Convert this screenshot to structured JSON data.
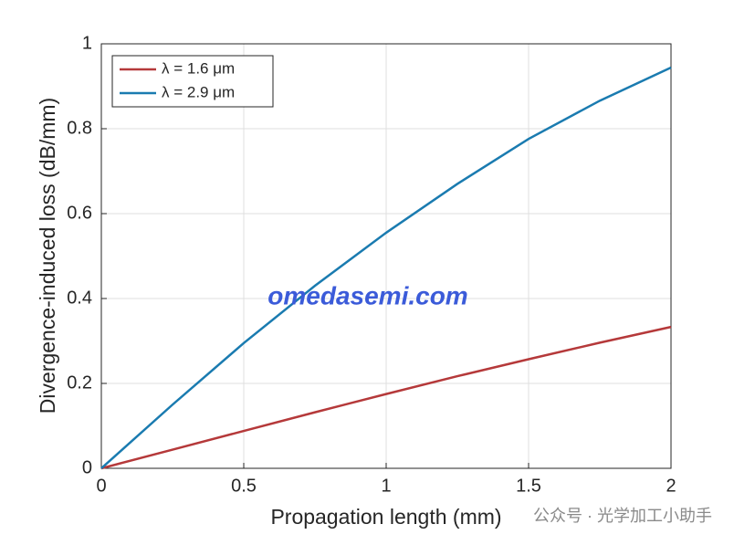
{
  "chart_data": {
    "type": "line",
    "x_label": "Propagation length (mm)",
    "y_label": "Divergence-induced loss (dB/mm)",
    "x": [
      0,
      0.25,
      0.5,
      0.75,
      1,
      1.25,
      1.5,
      1.75,
      2
    ],
    "series": [
      {
        "name": "λ = 1.6 μm",
        "color": "#b5393a",
        "values": [
          0,
          0.044,
          0.088,
          0.132,
          0.175,
          0.217,
          0.257,
          0.296,
          0.333
        ]
      },
      {
        "name": "λ = 2.9 μm",
        "color": "#1a7bb0",
        "values": [
          0,
          0.15,
          0.295,
          0.43,
          0.555,
          0.67,
          0.776,
          0.866,
          0.944
        ]
      }
    ],
    "xlim": [
      0,
      2
    ],
    "ylim": [
      0,
      1
    ],
    "xticks": [
      0,
      0.5,
      1,
      1.5,
      2
    ],
    "yticks": [
      0,
      0.2,
      0.4,
      0.6,
      0.8,
      1
    ],
    "grid": true,
    "legend": "upper left",
    "watermarks": [
      "omedasemi.com",
      "公众号 · 光学加工小助手"
    ]
  }
}
